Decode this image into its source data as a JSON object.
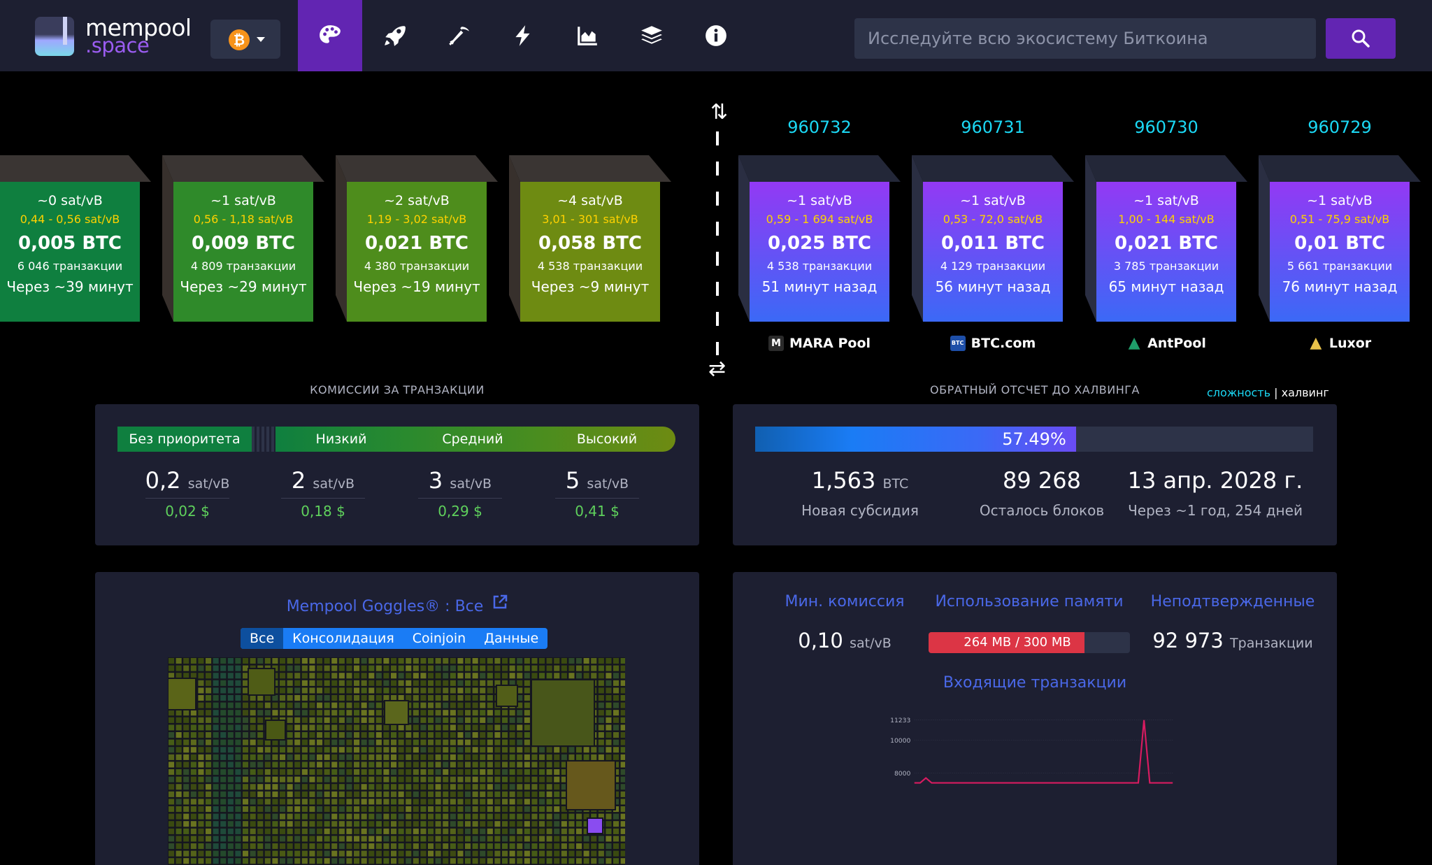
{
  "nav": {
    "logo_line1": "mempool",
    "logo_line2": ".space",
    "network_symbol": "₿",
    "items": [
      {
        "name": "dashboard",
        "icon": "palette-icon",
        "active": true
      },
      {
        "name": "mining-rocket",
        "icon": "rocket-icon",
        "active": false
      },
      {
        "name": "mining",
        "icon": "pickaxe-icon",
        "active": false
      },
      {
        "name": "lightning",
        "icon": "bolt-icon",
        "active": false
      },
      {
        "name": "graphs",
        "icon": "area-chart-icon",
        "active": false
      },
      {
        "name": "blocks",
        "icon": "layers-icon",
        "active": false
      },
      {
        "name": "about",
        "icon": "info-icon",
        "active": false
      }
    ],
    "search_placeholder": "Исследуйте всю экосистему Биткоина",
    "accent": "#6225b2"
  },
  "pending_blocks": [
    {
      "fee": "~0 sat/vB",
      "range": "0,44 - 0,56 sat/vB",
      "size": "0,005 BTC",
      "tx": "6 046 транзакции",
      "eta": "Через ~39 минут",
      "color": "#0f7f3f"
    },
    {
      "fee": "~1 sat/vB",
      "range": "0,56 - 1,18 sat/vB",
      "size": "0,009 BTC",
      "tx": "4 809 транзакции",
      "eta": "Через ~29 минут",
      "color": "#2f8a2a"
    },
    {
      "fee": "~2 sat/vB",
      "range": "1,19 - 3,02 sat/vB",
      "size": "0,021 BTC",
      "tx": "4 380 транзакции",
      "eta": "Через ~19 минут",
      "color": "#4e8d1c"
    },
    {
      "fee": "~4 sat/vB",
      "range": "3,01 - 301 sat/vB",
      "size": "0,058 BTC",
      "tx": "4 538 транзакции",
      "eta": "Через ~9 минут",
      "color": "#6e8b12"
    }
  ],
  "mined_blocks": [
    {
      "height": "960732",
      "fee": "~1 sat/vB",
      "range": "0,59 - 1 694 sat/vB",
      "size": "0,025 BTC",
      "tx": "4 538 транзакции",
      "ago": "51 минут назад",
      "pool": "MARA Pool",
      "pool_icon": "mara-pool-icon"
    },
    {
      "height": "960731",
      "fee": "~1 sat/vB",
      "range": "0,53 - 72,0 sat/vB",
      "size": "0,011 BTC",
      "tx": "4 129 транзакции",
      "ago": "56 минут назад",
      "pool": "BTC.com",
      "pool_icon": "btccom-pool-icon"
    },
    {
      "height": "960730",
      "fee": "~1 sat/vB",
      "range": "1,00 - 144 sat/vB",
      "size": "0,021 BTC",
      "tx": "3 785 транзакции",
      "ago": "65 минут назад",
      "pool": "AntPool",
      "pool_icon": "antpool-icon"
    },
    {
      "height": "960729",
      "fee": "~1 sat/vB",
      "range": "0,51 - 75,9 sat/vB",
      "size": "0,01 BTC",
      "tx": "5 661 транзакции",
      "ago": "76 минут назад",
      "pool": "Luxor",
      "pool_icon": "luxor-pool-icon"
    }
  ],
  "fees": {
    "title": "КОМИССИИ ЗА ТРАНЗАКЦИИ",
    "segments": [
      "Без приоритета",
      "Низкий",
      "Средний",
      "Высокий"
    ],
    "values": [
      {
        "sat": "0,2",
        "unit": "sat/vB",
        "usd": "0,02 $"
      },
      {
        "sat": "2",
        "unit": "sat/vB",
        "usd": "0,18 $"
      },
      {
        "sat": "3",
        "unit": "sat/vB",
        "usd": "0,29 $"
      },
      {
        "sat": "5",
        "unit": "sat/vB",
        "usd": "0,41 $"
      }
    ]
  },
  "halving": {
    "title": "ОБРАТНЫЙ ОТСЧЕТ ДО ХАЛВИНГА",
    "toggle_on": "сложность",
    "toggle_sep": "|",
    "toggle_off": "халвинг",
    "progress": 0.5749,
    "progress_label": "57.49%",
    "subsidy": "1,563",
    "subsidy_unit": "BTC",
    "subsidy_label": "Новая субсидия",
    "blocks_left": "89 268",
    "blocks_left_label": "Осталось блоков",
    "date": "13 апр. 2028 г.",
    "date_label": "Через ~1 год, 254 дней"
  },
  "goggles": {
    "title": "Mempool Goggles® : Все",
    "tabs": [
      "Все",
      "Консолидация",
      "Coinjoin",
      "Данные"
    ],
    "active_tab": 0
  },
  "mempool": {
    "min_fee_label": "Мин. комиссия",
    "min_fee": "0,10",
    "min_fee_unit": "sat/vB",
    "memory_label": "Использование памяти",
    "memory_text": "264 MB / 300 MB",
    "memory_used": 264,
    "memory_total": 300,
    "unconfirmed_label": "Неподтвержденные",
    "unconfirmed": "92 973",
    "unconfirmed_unit": "Транзакции",
    "incoming_title": "Входящие транзакции"
  },
  "chart_data": {
    "type": "line",
    "title": "Входящие транзакции",
    "y_ticks": [
      "11233",
      "10000",
      "8000"
    ],
    "ylim": [
      7500,
      11233
    ],
    "series": [
      {
        "values": [
          7400,
          7400,
          7700,
          7400,
          7400,
          7400,
          7400,
          7400,
          7400,
          7400,
          7400,
          7400,
          7400,
          7400,
          7400,
          7400,
          7400,
          7400,
          7400,
          7400,
          7400,
          7400,
          7400,
          7400,
          7400,
          7400,
          7400,
          7400,
          7400,
          7400,
          7400,
          7400,
          7400,
          7400,
          7400,
          7400,
          7400,
          7400,
          7400,
          7400,
          11233,
          7400,
          7400,
          7400,
          7400,
          7400
        ]
      }
    ],
    "color": "#d81b60"
  }
}
